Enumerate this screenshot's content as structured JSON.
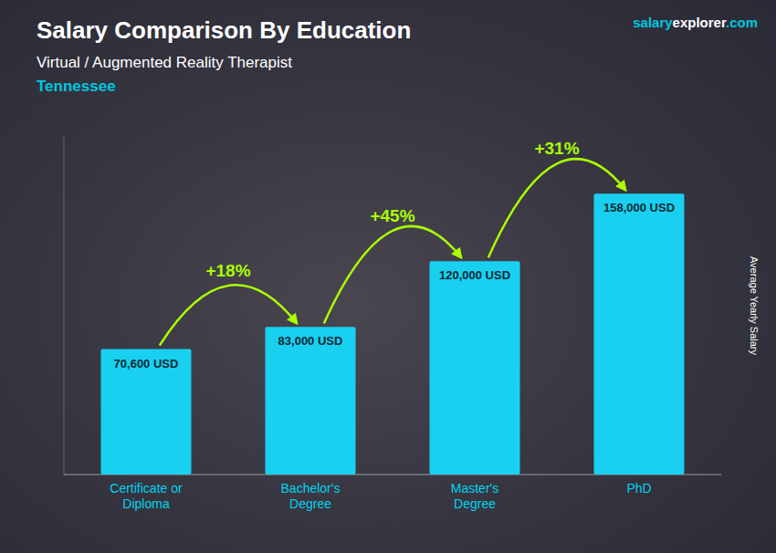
{
  "chart_data": {
    "type": "bar",
    "title": "Salary Comparison By Education",
    "subtitle": "Virtual / Augmented Reality Therapist",
    "location": "Tennessee",
    "brand": [
      "salary",
      "explorer",
      ".com"
    ],
    "y_label": "Average Yearly Salary",
    "categories": [
      "Certificate or\nDiploma",
      "Bachelor's\nDegree",
      "Master's\nDegree",
      "PhD"
    ],
    "values": [
      70600,
      83000,
      120000,
      158000
    ],
    "value_labels": [
      "70,600 USD",
      "83,000 USD",
      "120,000 USD",
      "158,000 USD"
    ],
    "data_labels": true,
    "annotations": [
      "+18%",
      "+45%",
      "+31%"
    ],
    "color": "#1ad0f0",
    "ylim": [
      0,
      190000
    ],
    "tick_labels": "x"
  }
}
